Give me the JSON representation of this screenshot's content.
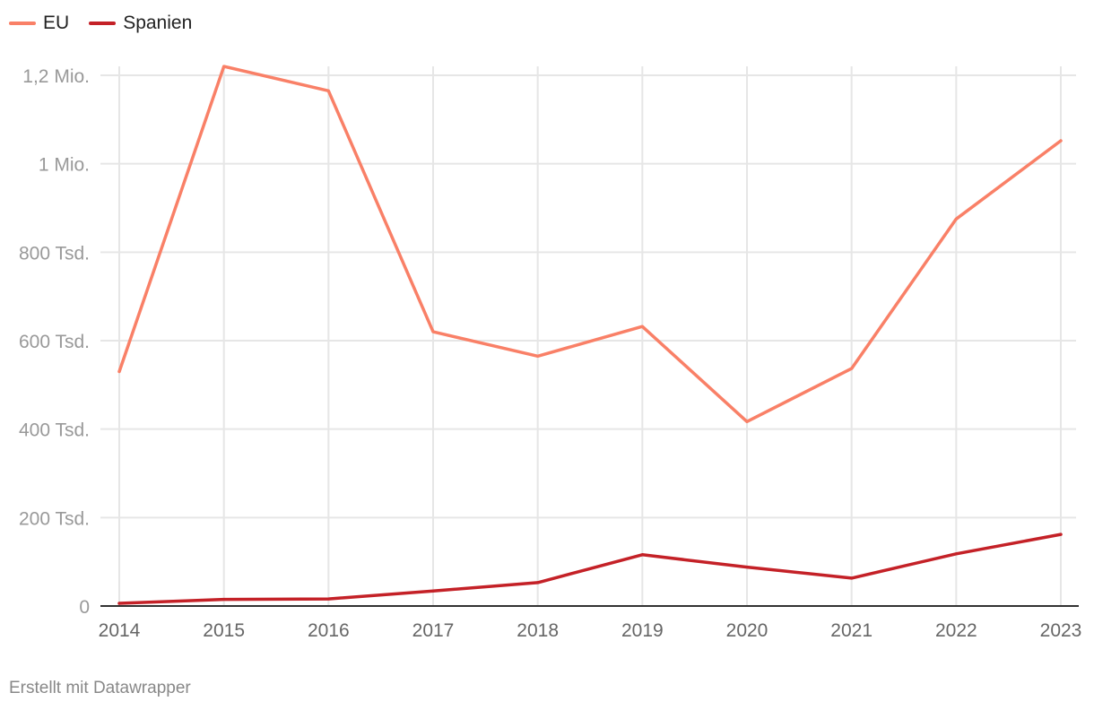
{
  "legend": [
    {
      "name": "EU",
      "color": "#f98067"
    },
    {
      "name": "Spanien",
      "color": "#c42127"
    }
  ],
  "footer": "Erstellt mit Datawrapper",
  "chart_data": {
    "type": "line",
    "x": [
      2014,
      2015,
      2016,
      2017,
      2018,
      2019,
      2020,
      2021,
      2022,
      2023
    ],
    "x_tick_labels": [
      "2014",
      "2015",
      "2016",
      "2017",
      "2018",
      "2019",
      "2020",
      "2021",
      "2022",
      "2023"
    ],
    "y_ticks": [
      0,
      200000,
      400000,
      600000,
      800000,
      1000000,
      1200000
    ],
    "y_tick_labels": [
      "0",
      "200 Tsd.",
      "400 Tsd.",
      "600 Tsd.",
      "800 Tsd.",
      "1 Mio.",
      "1,2 Mio."
    ],
    "ylim": [
      0,
      1200000
    ],
    "grid": true,
    "legend_position": "top-left",
    "series": [
      {
        "name": "EU",
        "color": "#f98067",
        "values": [
          530000,
          1220000,
          1165000,
          620000,
          565000,
          632000,
          417000,
          537000,
          875000,
          1052000
        ]
      },
      {
        "name": "Spanien",
        "color": "#c42127",
        "values": [
          6000,
          15000,
          16000,
          34000,
          53000,
          116000,
          88000,
          63000,
          118000,
          162000
        ]
      }
    ]
  }
}
